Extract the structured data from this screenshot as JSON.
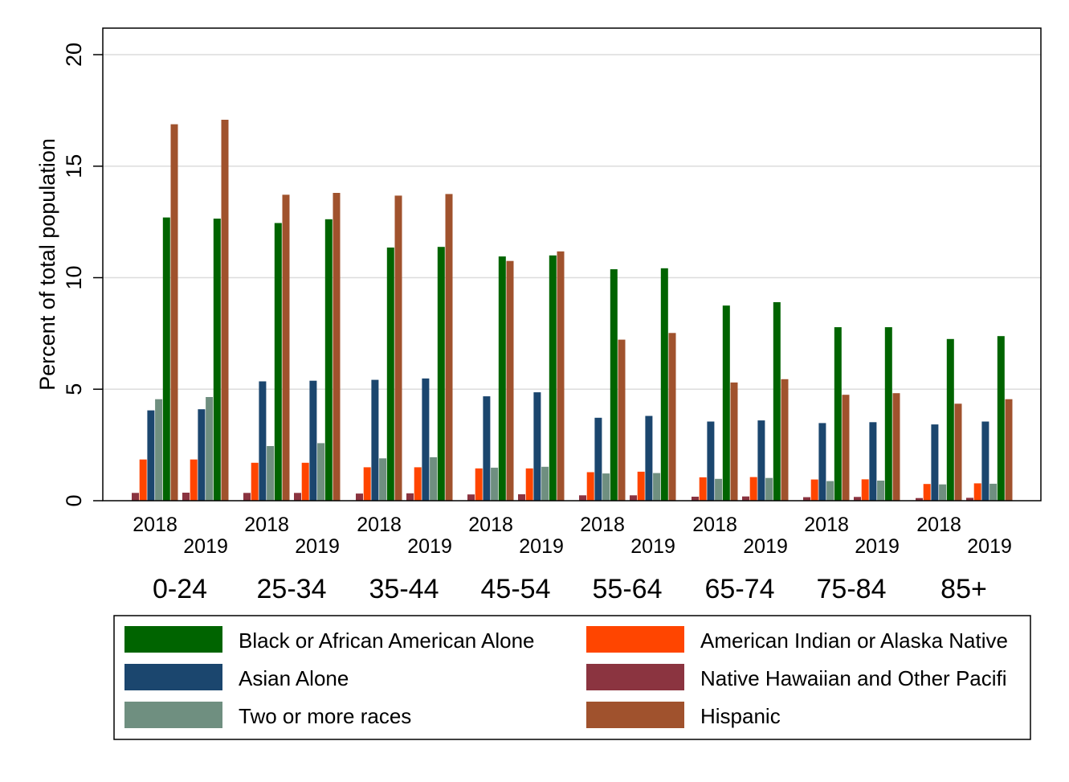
{
  "chart_data": {
    "type": "bar",
    "ylabel": "Percent of total population",
    "ylim": [
      0,
      20.5
    ],
    "yticks": [
      0,
      5,
      10,
      15,
      20
    ],
    "grid": true,
    "legend_position": "bottom",
    "groups": [
      "0-24",
      "25-34",
      "35-44",
      "45-54",
      "55-64",
      "65-74",
      "75-84",
      "85+"
    ],
    "years": [
      "2018",
      "2019"
    ],
    "series": [
      {
        "name": "Native Hawaiian and Other Pacifi",
        "color": "#8b3440",
        "values": [
          [
            0.35,
            0.36
          ],
          [
            0.35,
            0.35
          ],
          [
            0.32,
            0.33
          ],
          [
            0.28,
            0.29
          ],
          [
            0.24,
            0.24
          ],
          [
            0.18,
            0.19
          ],
          [
            0.16,
            0.17
          ],
          [
            0.12,
            0.13
          ]
        ]
      },
      {
        "name": "American Indian or Alaska Native",
        "color": "#ff4500",
        "values": [
          [
            1.85,
            1.85
          ],
          [
            1.7,
            1.7
          ],
          [
            1.5,
            1.5
          ],
          [
            1.45,
            1.45
          ],
          [
            1.28,
            1.3
          ],
          [
            1.05,
            1.06
          ],
          [
            0.95,
            0.96
          ],
          [
            0.75,
            0.78
          ]
        ]
      },
      {
        "name": "Asian Alone",
        "color": "#1b466e",
        "values": [
          [
            4.05,
            4.1
          ],
          [
            5.35,
            5.38
          ],
          [
            5.42,
            5.48
          ],
          [
            4.68,
            4.86
          ],
          [
            3.72,
            3.8
          ],
          [
            3.55,
            3.6
          ],
          [
            3.48,
            3.52
          ],
          [
            3.42,
            3.55
          ]
        ]
      },
      {
        "name": "Two or more races",
        "color": "#6f8f80",
        "values": [
          [
            4.55,
            4.65
          ],
          [
            2.45,
            2.58
          ],
          [
            1.9,
            1.95
          ],
          [
            1.48,
            1.52
          ],
          [
            1.22,
            1.24
          ],
          [
            0.98,
            1.02
          ],
          [
            0.88,
            0.9
          ],
          [
            0.73,
            0.76
          ]
        ]
      },
      {
        "name": "Black or African American Alone",
        "color": "#006400",
        "values": [
          [
            12.7,
            12.65
          ],
          [
            12.45,
            12.62
          ],
          [
            11.35,
            11.38
          ],
          [
            10.95,
            11.0
          ],
          [
            10.38,
            10.42
          ],
          [
            8.75,
            8.9
          ],
          [
            7.78,
            7.78
          ],
          [
            7.25,
            7.38
          ]
        ]
      },
      {
        "name": "Hispanic",
        "color": "#a0522d",
        "values": [
          [
            16.88,
            17.08
          ],
          [
            13.72,
            13.8
          ],
          [
            13.68,
            13.75
          ],
          [
            10.75,
            11.18
          ],
          [
            7.22,
            7.52
          ],
          [
            5.3,
            5.45
          ],
          [
            4.75,
            4.82
          ],
          [
            4.35,
            4.55
          ]
        ]
      }
    ],
    "legend_order": [
      "Black or African American Alone",
      "American Indian or Alaska Native",
      "Asian Alone",
      "Native Hawaiian and Other Pacifi",
      "Two or more races",
      "Hispanic"
    ]
  }
}
